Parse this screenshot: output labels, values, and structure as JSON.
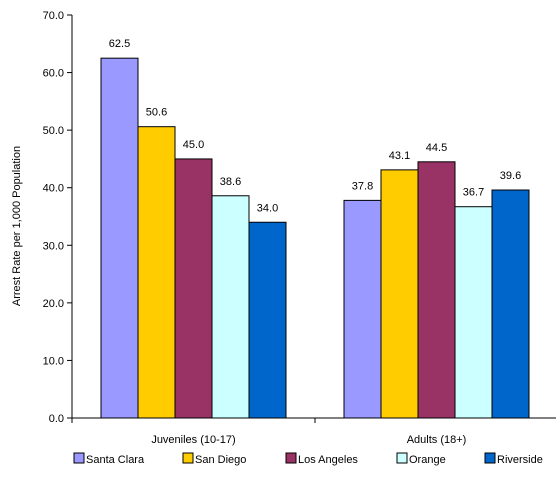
{
  "chart_data": {
    "type": "bar",
    "ylabel": "Arrest Rate per 1,000 Population",
    "ylim": [
      0,
      70
    ],
    "y_ticks": [
      "0.0",
      "10.0",
      "20.0",
      "30.0",
      "40.0",
      "50.0",
      "60.0",
      "70.0"
    ],
    "categories": [
      "Juveniles (10-17)",
      "Adults (18+)"
    ],
    "series": [
      {
        "name": "Santa Clara",
        "color": "#9999ff",
        "values": [
          62.5,
          37.8
        ],
        "labels": [
          "62.5",
          "37.8"
        ]
      },
      {
        "name": "San Diego",
        "color": "#ffcc00",
        "values": [
          50.6,
          43.1
        ],
        "labels": [
          "50.6",
          "43.1"
        ]
      },
      {
        "name": "Los Angeles",
        "color": "#993366",
        "values": [
          45.0,
          44.5
        ],
        "labels": [
          "45.0",
          "44.5"
        ]
      },
      {
        "name": "Orange",
        "color": "#ccffff",
        "values": [
          38.6,
          36.7
        ],
        "labels": [
          "38.6",
          "36.7"
        ]
      },
      {
        "name": "Riverside",
        "color": "#0066cc",
        "values": [
          34.0,
          39.6
        ],
        "labels": [
          "34.0",
          "39.6"
        ]
      }
    ],
    "grid": false,
    "legend_position": "bottom"
  }
}
